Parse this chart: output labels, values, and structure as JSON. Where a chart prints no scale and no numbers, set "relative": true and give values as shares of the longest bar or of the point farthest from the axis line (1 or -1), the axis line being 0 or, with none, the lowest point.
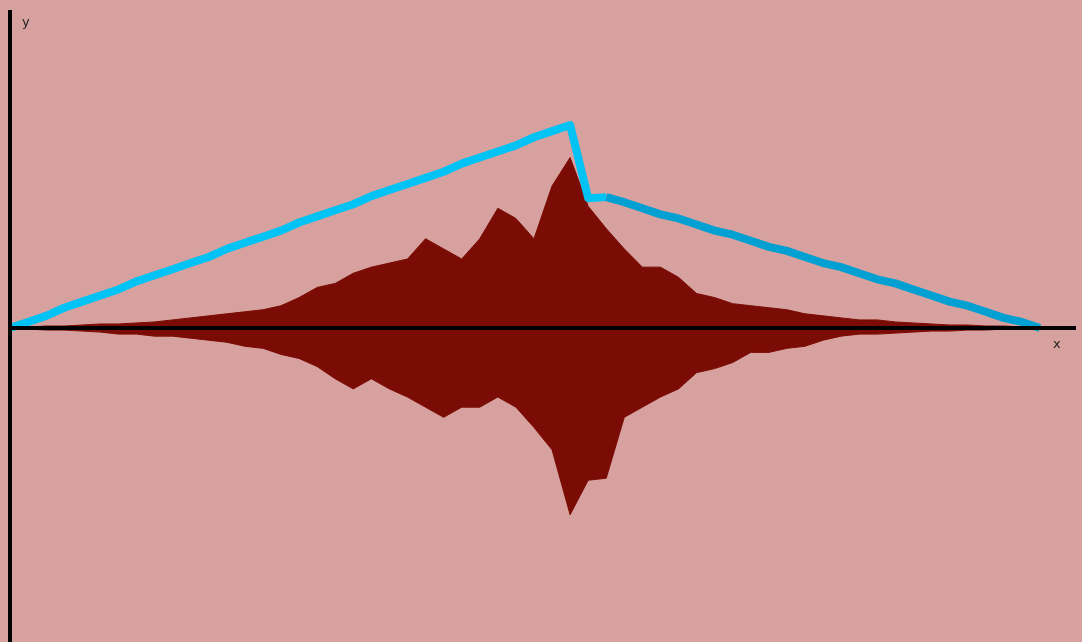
{
  "chart_data": {
    "type": "area",
    "relative": true,
    "xlabel": "x",
    "annotations": [
      "y"
    ],
    "categories": [
      null,
      null,
      null,
      null,
      null,
      null,
      null,
      null,
      null,
      null,
      null,
      null,
      null,
      null,
      null,
      null,
      null,
      null,
      null,
      null,
      null,
      null,
      null,
      null,
      null,
      null,
      null,
      null,
      null,
      null,
      null,
      null,
      null,
      null,
      null,
      null,
      null,
      null,
      null,
      null,
      null,
      null,
      null,
      null,
      null,
      null,
      null,
      null,
      null,
      null,
      null,
      null,
      null,
      null,
      null,
      null,
      null,
      null,
      null,
      null
    ],
    "series": [
      {
        "color": "#7a0c05",
        "values": [
          0,
          0.005,
          0.01,
          0.01,
          0.015,
          0.02,
          0.02,
          0.025,
          0.03,
          0.04,
          0.05,
          0.06,
          0.07,
          0.08,
          0.09,
          0.11,
          0.15,
          0.2,
          0.22,
          0.27,
          0.3,
          0.32,
          0.34,
          0.44,
          0.39,
          0.34,
          0.44,
          0.59,
          0.54,
          0.44,
          0.7,
          0.84,
          0.6,
          0.49,
          0.39,
          0.3,
          0.3,
          0.25,
          0.17,
          0.15,
          0.12,
          0.11,
          0.1,
          0.09,
          0.07,
          0.06,
          0.05,
          0.04,
          0.04,
          0.03,
          0.025,
          0.02,
          0.015,
          0.015,
          0.01,
          0.01,
          0.005,
          0.005,
          0,
          0
        ]
      },
      {
        "color": "#7b0c05",
        "values": [
          0,
          -0.005,
          -0.01,
          -0.01,
          -0.015,
          -0.02,
          -0.03,
          -0.03,
          -0.04,
          -0.04,
          -0.05,
          -0.06,
          -0.07,
          -0.09,
          -0.1,
          -0.13,
          -0.15,
          -0.19,
          -0.25,
          -0.3,
          -0.25,
          -0.3,
          -0.34,
          -0.39,
          -0.44,
          -0.39,
          -0.39,
          -0.34,
          -0.39,
          -0.49,
          -0.6,
          -0.92,
          -0.75,
          -0.74,
          -0.44,
          -0.39,
          -0.34,
          -0.3,
          -0.22,
          -0.2,
          -0.17,
          -0.12,
          -0.12,
          -0.1,
          -0.09,
          -0.06,
          -0.04,
          -0.03,
          -0.03,
          -0.025,
          -0.02,
          -0.015,
          -0.015,
          -0.01,
          -0.01,
          -0.005,
          -0.005,
          -0.005,
          0,
          0
        ]
      },
      {
        "type": "line",
        "color": "#00c3f5",
        "values": [
          0,
          0.03,
          0.06,
          0.1,
          0.13,
          0.16,
          0.19,
          0.23,
          0.26,
          0.29,
          0.32,
          0.35,
          0.39,
          0.42,
          0.45,
          0.48,
          0.52,
          0.55,
          0.58,
          0.61,
          0.65,
          0.68,
          0.71,
          0.74,
          0.77,
          0.81,
          0.84,
          0.87,
          0.9,
          0.94,
          0.97,
          1,
          0.64,
          0.645,
          null,
          null,
          null,
          null,
          null,
          null,
          null,
          null,
          null,
          null,
          null,
          null,
          null,
          null,
          null,
          null,
          null,
          null,
          null,
          null,
          null,
          null,
          null,
          null,
          null,
          null
        ]
      },
      {
        "type": "line",
        "color": "#00a0d2",
        "values": [
          null,
          null,
          null,
          null,
          null,
          null,
          null,
          null,
          null,
          null,
          null,
          null,
          null,
          null,
          null,
          null,
          null,
          null,
          null,
          null,
          null,
          null,
          null,
          null,
          null,
          null,
          null,
          null,
          null,
          null,
          null,
          null,
          null,
          0.645,
          0.62,
          0.59,
          0.56,
          0.54,
          0.51,
          0.48,
          0.46,
          0.43,
          0.4,
          0.38,
          0.35,
          0.32,
          0.3,
          0.27,
          0.24,
          0.22,
          0.19,
          0.16,
          0.13,
          0.11,
          0.08,
          0.05,
          0.03,
          0,
          null,
          null
        ]
      }
    ]
  }
}
